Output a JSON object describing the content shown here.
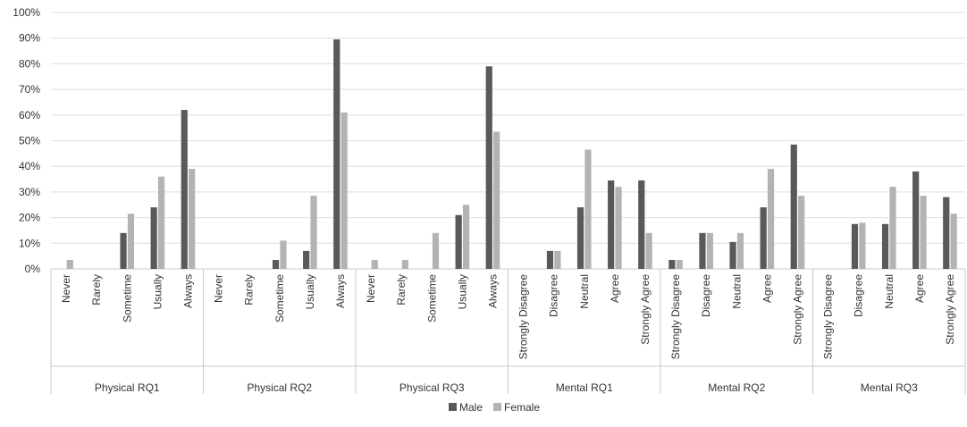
{
  "chart_data": {
    "type": "bar",
    "groups": [
      {
        "name": "Physical RQ1",
        "categories": [
          "Never",
          "Rarely",
          "Sometime",
          "Usually",
          "Always"
        ]
      },
      {
        "name": "Physical RQ2",
        "categories": [
          "Never",
          "Rarely",
          "Sometime",
          "Usually",
          "Always"
        ]
      },
      {
        "name": "Physical RQ3",
        "categories": [
          "Never",
          "Rarely",
          "Sometime",
          "Usually",
          "Always"
        ]
      },
      {
        "name": "Mental RQ1",
        "categories": [
          "Strongly Disagree",
          "Disagree",
          "Neutral",
          "Agree",
          "Strongly Agree"
        ]
      },
      {
        "name": "Mental RQ2",
        "categories": [
          "Strongly Disagree",
          "Disagree",
          "Neutral",
          "Agree",
          "Strongly Agree"
        ]
      },
      {
        "name": "Mental RQ3",
        "categories": [
          "Strongly Disagree",
          "Disagree",
          "Neutral",
          "Agree",
          "Strongly Agree"
        ]
      }
    ],
    "series": [
      {
        "name": "Male",
        "color": "#595959",
        "values": [
          0,
          0,
          14,
          24,
          62,
          0,
          0,
          3.5,
          7,
          89.5,
          0,
          0,
          0,
          21,
          79,
          0,
          7,
          24,
          34.5,
          34.5,
          3.5,
          14,
          10.5,
          24,
          48.5,
          0,
          17.5,
          17.5,
          38,
          28
        ]
      },
      {
        "name": "Female",
        "color": "#b3b3b3",
        "values": [
          3.5,
          0,
          21.5,
          36,
          39,
          0,
          0,
          11,
          28.5,
          61,
          3.5,
          3.5,
          14,
          25,
          53.5,
          0,
          7,
          46.5,
          32,
          14,
          3.5,
          14,
          14,
          39,
          28.5,
          0,
          18,
          32,
          28.5,
          21.5
        ]
      }
    ],
    "yticks": [
      "0%",
      "10%",
      "20%",
      "30%",
      "40%",
      "50%",
      "60%",
      "70%",
      "80%",
      "90%",
      "100%"
    ],
    "ylim": [
      0,
      100
    ],
    "grid": true,
    "legend": "bottom"
  }
}
